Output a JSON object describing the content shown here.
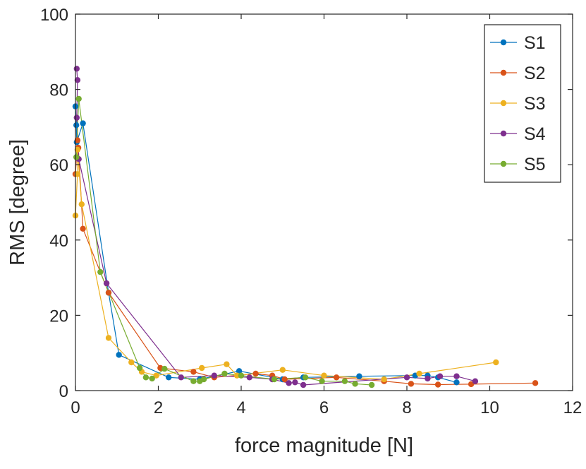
{
  "chart_data": {
    "type": "line",
    "title": "",
    "xlabel": "force magnitude [N]",
    "ylabel": "RMS [degree]",
    "xlim": [
      0,
      12
    ],
    "ylim": [
      0,
      100
    ],
    "xticks": [
      0,
      2,
      4,
      6,
      8,
      10,
      12
    ],
    "yticks": [
      0,
      20,
      40,
      60,
      80,
      100
    ],
    "xtick_labels": [
      "0",
      "2",
      "4",
      "6",
      "8",
      "10",
      "12"
    ],
    "ytick_labels": [
      "0",
      "20",
      "40",
      "60",
      "80",
      "100"
    ],
    "grid": false,
    "legend_position": "top-right",
    "series": [
      {
        "name": "S1",
        "color": "#0072BD",
        "points": [
          [
            0.0,
            75.5
          ],
          [
            0.02,
            70.5
          ],
          [
            0.03,
            66.0
          ],
          [
            0.18,
            71.0
          ],
          [
            0.8,
            26.0
          ],
          [
            1.05,
            9.5
          ],
          [
            2.25,
            3.5
          ],
          [
            3.0,
            3.0
          ],
          [
            3.95,
            5.2
          ],
          [
            5.0,
            3.0
          ],
          [
            5.5,
            3.5
          ],
          [
            6.85,
            3.8
          ],
          [
            8.2,
            4.0
          ],
          [
            8.5,
            4.0
          ],
          [
            8.75,
            3.5
          ],
          [
            9.2,
            2.2
          ]
        ]
      },
      {
        "name": "S2",
        "color": "#D95319",
        "points": [
          [
            0.0,
            57.5
          ],
          [
            0.05,
            66.5
          ],
          [
            0.07,
            64.5
          ],
          [
            0.18,
            43.0
          ],
          [
            0.8,
            26.0
          ],
          [
            2.05,
            6.0
          ],
          [
            2.85,
            5.0
          ],
          [
            3.35,
            3.5
          ],
          [
            4.35,
            4.5
          ],
          [
            4.75,
            4.0
          ],
          [
            5.05,
            3.0
          ],
          [
            6.3,
            3.5
          ],
          [
            7.45,
            2.5
          ],
          [
            8.1,
            1.8
          ],
          [
            8.75,
            1.6
          ],
          [
            9.55,
            1.7
          ],
          [
            11.1,
            2.0
          ]
        ]
      },
      {
        "name": "S3",
        "color": "#EDB120",
        "points": [
          [
            0.0,
            46.5
          ],
          [
            0.05,
            57.5
          ],
          [
            0.05,
            64.0
          ],
          [
            0.15,
            49.5
          ],
          [
            0.8,
            14.0
          ],
          [
            1.35,
            7.5
          ],
          [
            1.6,
            5.0
          ],
          [
            1.95,
            4.0
          ],
          [
            3.05,
            6.0
          ],
          [
            3.65,
            7.0
          ],
          [
            3.9,
            4.0
          ],
          [
            5.0,
            5.5
          ],
          [
            6.0,
            4.0
          ],
          [
            7.45,
            3.0
          ],
          [
            8.3,
            4.5
          ],
          [
            10.15,
            7.5
          ]
        ]
      },
      {
        "name": "S4",
        "color": "#7E2F8E",
        "points": [
          [
            0.03,
            85.5
          ],
          [
            0.05,
            82.5
          ],
          [
            0.03,
            72.5
          ],
          [
            0.08,
            61.5
          ],
          [
            0.75,
            28.5
          ],
          [
            2.55,
            3.5
          ],
          [
            3.35,
            4.0
          ],
          [
            4.2,
            3.5
          ],
          [
            4.75,
            3.0
          ],
          [
            5.15,
            2.0
          ],
          [
            5.3,
            2.2
          ],
          [
            5.5,
            1.5
          ],
          [
            8.0,
            3.5
          ],
          [
            8.5,
            3.2
          ],
          [
            8.8,
            3.8
          ],
          [
            9.2,
            3.8
          ],
          [
            9.65,
            2.5
          ]
        ]
      },
      {
        "name": "S5",
        "color": "#77AC30",
        "points": [
          [
            0.02,
            62.0
          ],
          [
            0.08,
            77.5
          ],
          [
            0.6,
            31.5
          ],
          [
            1.55,
            6.0
          ],
          [
            1.7,
            3.5
          ],
          [
            1.85,
            3.2
          ],
          [
            2.15,
            5.8
          ],
          [
            2.85,
            2.5
          ],
          [
            3.0,
            2.5
          ],
          [
            3.1,
            3.0
          ],
          [
            3.6,
            4.5
          ],
          [
            4.0,
            4.0
          ],
          [
            4.8,
            3.0
          ],
          [
            5.55,
            3.5
          ],
          [
            5.95,
            2.5
          ],
          [
            6.5,
            2.5
          ],
          [
            6.75,
            1.8
          ],
          [
            7.15,
            1.5
          ]
        ]
      }
    ]
  }
}
